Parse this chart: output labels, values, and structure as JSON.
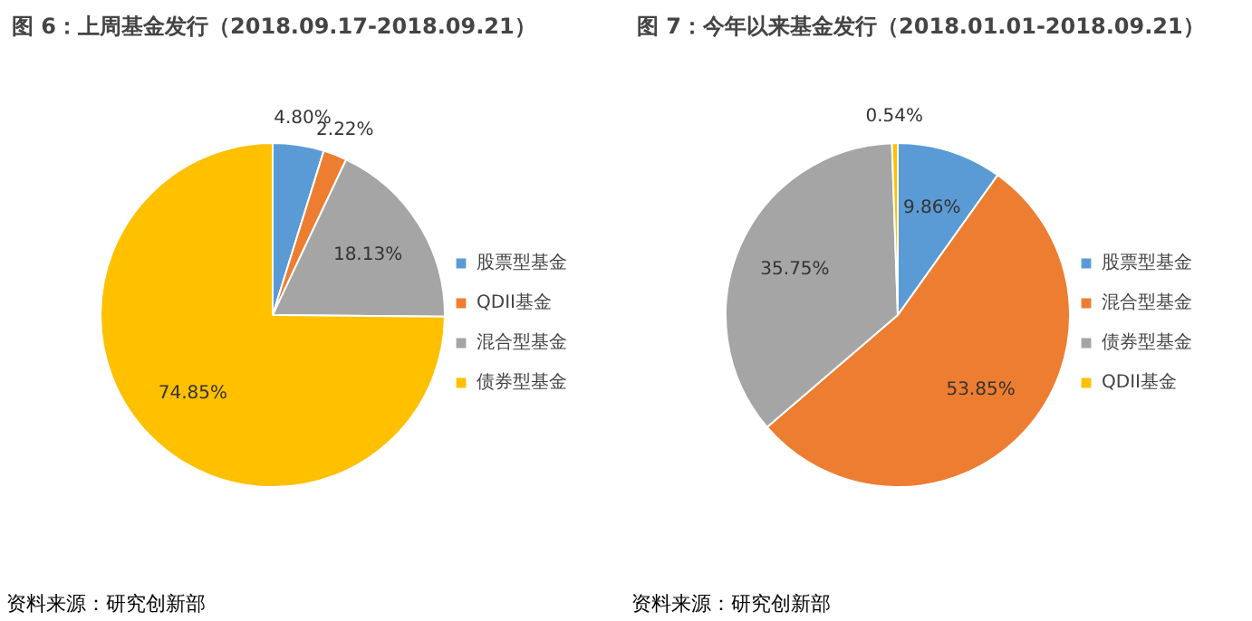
{
  "chart_data": [
    {
      "type": "pie",
      "title": "图 6：上周基金发行（2018.09.17-2018.09.21）",
      "categories": [
        "股票型基金",
        "QDII基金",
        "混合型基金",
        "债券型基金"
      ],
      "values": [
        4.8,
        2.22,
        18.13,
        74.85
      ],
      "colors": [
        "#5b9bd5",
        "#ed7d31",
        "#a5a5a5",
        "#ffc000"
      ],
      "value_labels": [
        "4.80%",
        "2.22%",
        "18.13%",
        "74.85%"
      ],
      "legend": "right",
      "annotations": [
        "资料来源：研究创新部"
      ]
    },
    {
      "type": "pie",
      "title": "图 7：今年以来基金发行（2018.01.01-2018.09.21）",
      "categories": [
        "股票型基金",
        "混合型基金",
        "债券型基金",
        "QDII基金"
      ],
      "values": [
        9.86,
        53.85,
        35.75,
        0.54
      ],
      "colors": [
        "#5b9bd5",
        "#ed7d31",
        "#a5a5a5",
        "#ffc000"
      ],
      "value_labels": [
        "9.86%",
        "53.85%",
        "35.75%",
        "0.54%"
      ],
      "legend": "right",
      "annotations": [
        "资料来源：研究创新部"
      ]
    }
  ]
}
